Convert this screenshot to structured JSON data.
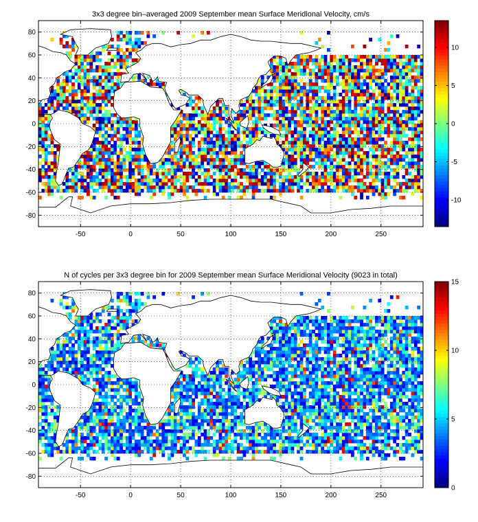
{
  "figure": {
    "background": "#ffffff"
  },
  "chart_data": [
    {
      "type": "heatmap",
      "title": "3x3 degree bin–averaged 2009 September mean Surface Meridional Velocity, cm/s",
      "xlabel": "",
      "ylabel": "",
      "xlim": [
        -92,
        292
      ],
      "ylim": [
        -90,
        90
      ],
      "xticks": [
        -50,
        0,
        50,
        100,
        150,
        200,
        250
      ],
      "yticks": [
        -80,
        -60,
        -40,
        -20,
        0,
        20,
        40,
        60,
        80
      ],
      "grid": true,
      "grid_style": "dotted",
      "colormap": "jet",
      "colorbar": {
        "position": "right",
        "range": [
          -13.5,
          13.5
        ],
        "ticks": [
          -10,
          -5,
          0,
          5,
          10
        ]
      },
      "bin_size_deg": 3,
      "cells_note": "sampled representative bins"
    },
    {
      "type": "heatmap",
      "title": "N of cycles per 3x3 degree bin for 2009 September mean Surface Meridional Velocity (9023 in total)",
      "xlabel": "",
      "ylabel": "",
      "xlim": [
        -92,
        292
      ],
      "ylim": [
        -90,
        90
      ],
      "xticks": [
        -50,
        0,
        50,
        100,
        150,
        200,
        250
      ],
      "yticks": [
        -80,
        -60,
        -40,
        -20,
        0,
        20,
        40,
        60,
        80
      ],
      "grid": true,
      "grid_style": "dotted",
      "colormap": "jet",
      "colorbar": {
        "position": "right",
        "range": [
          0,
          15
        ],
        "ticks": [
          0,
          5,
          10,
          15
        ]
      },
      "bin_size_deg": 3,
      "total": 9023
    }
  ]
}
